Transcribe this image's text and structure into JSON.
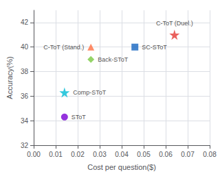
{
  "chart_data": {
    "type": "scatter",
    "xlabel": "Cost per question($)",
    "ylabel": "Accuracy(%)",
    "xlim": [
      0.0,
      0.08
    ],
    "ylim": [
      32,
      43
    ],
    "xticks": [
      {
        "value": 0,
        "label": "0.00"
      },
      0.01,
      0.02,
      0.03,
      0.04,
      0.05,
      0.06,
      0.07,
      0.08
    ],
    "yticks": [
      32,
      34,
      36,
      38,
      40,
      42
    ],
    "grid": true,
    "series": [
      {
        "name": "SToT",
        "color": "#7b00d4",
        "marker": "circle",
        "x": [
          0.014
        ],
        "values": [
          34.3
        ]
      },
      {
        "name": "Comp-SToT",
        "color": "#00bcd4",
        "marker": "star",
        "x": [
          0.014
        ],
        "values": [
          36.3
        ]
      },
      {
        "name": "Back-SToT",
        "color": "#7bc942",
        "marker": "diamond",
        "x": [
          0.026
        ],
        "values": [
          39.0
        ]
      },
      {
        "name": "C-ToT (Stand.)",
        "color": "#ff7043",
        "marker": "triangle",
        "x": [
          0.026
        ],
        "values": [
          40.0
        ]
      },
      {
        "name": "SC-SToT",
        "color": "#1565c0",
        "marker": "square",
        "x": [
          0.046
        ],
        "values": [
          40.0
        ]
      },
      {
        "name": "C-ToT (Duel.)",
        "color": "#e53935",
        "marker": "star",
        "x": [
          0.064
        ],
        "values": [
          41.0
        ]
      }
    ]
  }
}
